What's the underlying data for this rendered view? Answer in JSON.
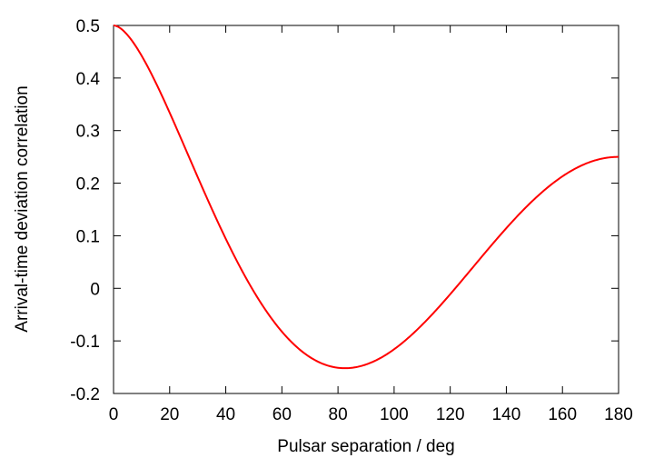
{
  "chart_data": {
    "type": "line",
    "title": "",
    "xlabel": "Pulsar separation / deg",
    "ylabel": "Arrival-time deviation correlation",
    "xlim": [
      0,
      180
    ],
    "ylim": [
      -0.2,
      0.5
    ],
    "xticks": [
      0,
      20,
      40,
      60,
      80,
      100,
      120,
      140,
      160,
      180
    ],
    "yticks": [
      -0.2,
      -0.1,
      0,
      0.1,
      0.2,
      0.3,
      0.4,
      0.5
    ],
    "xtick_labels": [
      "0",
      "20",
      "40",
      "60",
      "80",
      "100",
      "120",
      "140",
      "160",
      "180"
    ],
    "ytick_labels": [
      "-0.2",
      "-0.1",
      "0",
      "0.1",
      "0.2",
      "0.3",
      "0.4",
      "0.5"
    ],
    "grid": false,
    "series": [
      {
        "color": "#ff0000",
        "x": [
          0,
          5,
          10,
          15,
          20,
          25,
          30,
          35,
          40,
          45,
          50,
          55,
          60,
          65,
          70,
          75,
          80,
          82,
          85,
          90,
          95,
          100,
          105,
          110,
          115,
          120,
          125,
          130,
          135,
          140,
          145,
          150,
          155,
          160,
          165,
          170,
          175,
          180
        ],
        "y": [
          0.5,
          0.4825,
          0.4413,
          0.3901,
          0.3344,
          0.2772,
          0.2207,
          0.1664,
          0.1155,
          0.0689,
          0.0274,
          -0.0085,
          -0.0387,
          -0.0627,
          -0.0807,
          -0.093,
          -0.0998,
          -0.1006,
          -0.1014,
          -0.0982,
          -0.0907,
          -0.0792,
          -0.0641,
          -0.0459,
          -0.025,
          -0.0019,
          0.0229,
          0.0487,
          0.0751,
          0.1014,
          0.1268,
          0.1506,
          0.1718,
          0.1891,
          0.2006,
          0.2036,
          0.1934,
          0.25
        ]
      }
    ]
  }
}
